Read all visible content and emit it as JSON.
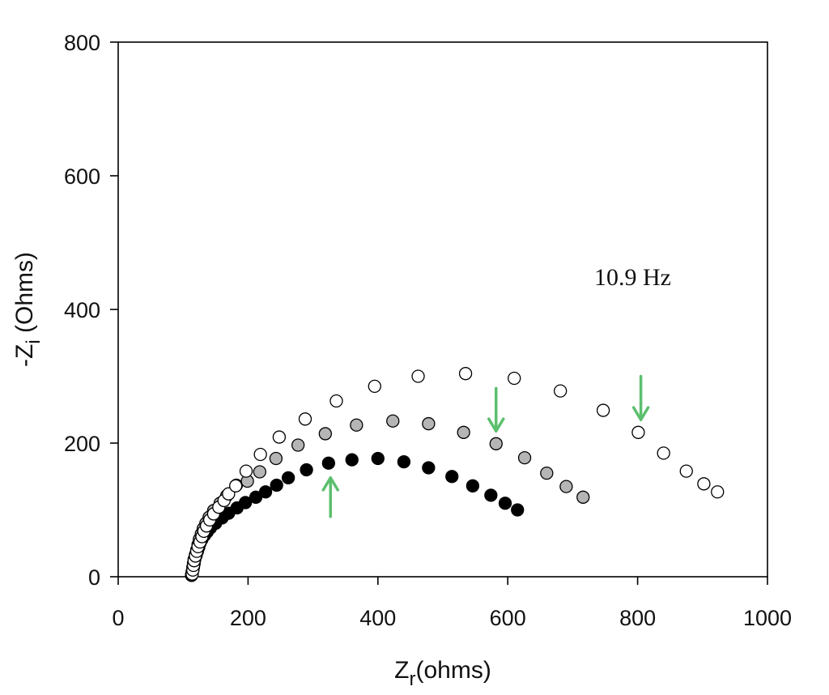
{
  "chart_data": {
    "type": "scatter",
    "xlabel": {
      "main": "Z",
      "sub": "r",
      "rest": "(ohms)"
    },
    "ylabel": {
      "prefix": "-Z",
      "sub": "i",
      "rest": " (Ohms)"
    },
    "xlim": [
      0,
      1000
    ],
    "ylim": [
      0,
      800
    ],
    "xticks": [
      0,
      200,
      400,
      600,
      800,
      1000
    ],
    "yticks": [
      0,
      200,
      400,
      600,
      800
    ],
    "grid": false,
    "annotations": [
      {
        "text": "10.9 Hz",
        "x": 790,
        "y": 450
      }
    ],
    "markers": [
      {
        "type": "arrow-up",
        "x": 327,
        "y_tail": 90,
        "y_head": 148,
        "color": "#5cbf6e"
      },
      {
        "type": "arrow-down",
        "x": 582,
        "y_tail": 282,
        "y_head": 218,
        "color": "#5cbf6e"
      },
      {
        "type": "arrow-down",
        "x": 805,
        "y_tail": 300,
        "y_head": 235,
        "color": "#5cbf6e"
      }
    ],
    "series": [
      {
        "marker": "filled-black",
        "fill": "#000000",
        "stroke": "#000000",
        "points": [
          [
            113,
            2
          ],
          [
            114,
            6
          ],
          [
            115,
            10
          ],
          [
            116,
            15
          ],
          [
            117,
            20
          ],
          [
            118,
            26
          ],
          [
            120,
            32
          ],
          [
            122,
            38
          ],
          [
            124,
            44
          ],
          [
            126,
            50
          ],
          [
            129,
            56
          ],
          [
            133,
            62
          ],
          [
            137,
            67
          ],
          [
            142,
            73
          ],
          [
            150,
            80
          ],
          [
            160,
            88
          ],
          [
            170,
            95
          ],
          [
            183,
            103
          ],
          [
            196,
            111
          ],
          [
            212,
            119
          ],
          [
            227,
            127
          ],
          [
            244,
            137
          ],
          [
            262,
            148
          ],
          [
            290,
            160
          ],
          [
            324,
            170
          ],
          [
            360,
            175
          ],
          [
            400,
            177
          ],
          [
            440,
            172
          ],
          [
            478,
            163
          ],
          [
            514,
            150
          ],
          [
            546,
            136
          ],
          [
            574,
            122
          ],
          [
            596,
            110
          ],
          [
            615,
            100
          ]
        ]
      },
      {
        "marker": "filled-gray",
        "fill": "#b5b5b5",
        "stroke": "#000000",
        "points": [
          [
            113,
            3
          ],
          [
            114,
            8
          ],
          [
            115,
            14
          ],
          [
            116,
            20
          ],
          [
            117,
            26
          ],
          [
            119,
            33
          ],
          [
            121,
            40
          ],
          [
            123,
            48
          ],
          [
            125,
            56
          ],
          [
            128,
            64
          ],
          [
            131,
            72
          ],
          [
            135,
            80
          ],
          [
            140,
            89
          ],
          [
            147,
            99
          ],
          [
            157,
            110
          ],
          [
            167,
            121
          ],
          [
            182,
            137
          ],
          [
            199,
            143
          ],
          [
            218,
            157
          ],
          [
            243,
            177
          ],
          [
            277,
            197
          ],
          [
            319,
            214
          ],
          [
            367,
            227
          ],
          [
            423,
            233
          ],
          [
            478,
            229
          ],
          [
            532,
            216
          ],
          [
            582,
            199
          ],
          [
            626,
            178
          ],
          [
            660,
            155
          ],
          [
            690,
            135
          ],
          [
            716,
            119
          ]
        ]
      },
      {
        "marker": "open",
        "fill": "#ffffff",
        "stroke": "#000000",
        "points": [
          [
            114,
            4
          ],
          [
            115,
            10
          ],
          [
            116,
            17
          ],
          [
            117,
            24
          ],
          [
            119,
            31
          ],
          [
            121,
            38
          ],
          [
            123,
            45
          ],
          [
            126,
            52
          ],
          [
            129,
            60
          ],
          [
            132,
            68
          ],
          [
            136,
            76
          ],
          [
            141,
            85
          ],
          [
            147,
            94
          ],
          [
            155,
            104
          ],
          [
            163,
            114
          ],
          [
            170,
            124
          ],
          [
            181,
            136
          ],
          [
            197,
            158
          ],
          [
            219,
            183
          ],
          [
            248,
            209
          ],
          [
            288,
            236
          ],
          [
            336,
            263
          ],
          [
            395,
            285
          ],
          [
            462,
            300
          ],
          [
            535,
            304
          ],
          [
            610,
            297
          ],
          [
            681,
            278
          ],
          [
            747,
            249
          ],
          [
            801,
            216
          ],
          [
            840,
            185
          ],
          [
            875,
            158
          ],
          [
            902,
            139
          ],
          [
            923,
            127
          ]
        ]
      }
    ]
  }
}
